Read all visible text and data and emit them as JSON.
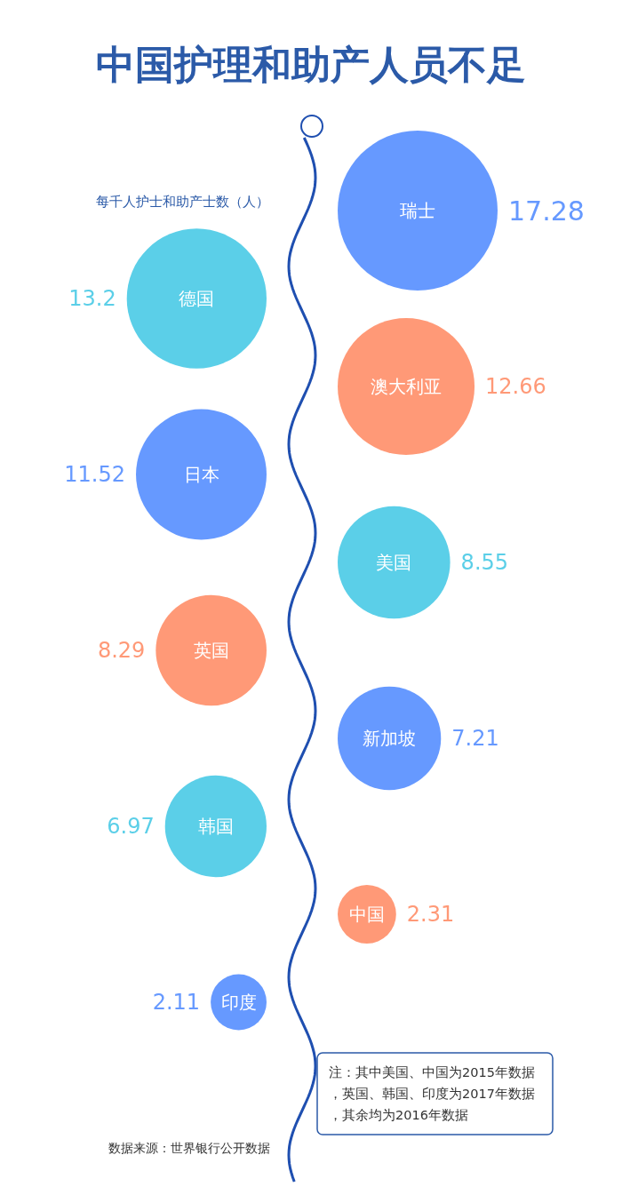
{
  "chart_data": {
    "type": "other",
    "title": "中国护理和助产人员不足",
    "subtitle": "每千人护士和助产士数（人）",
    "categories": [
      "瑞士",
      "德国",
      "澳大利亚",
      "日本",
      "美国",
      "英国",
      "新加坡",
      "韩国",
      "中国",
      "印度"
    ],
    "values": [
      17.28,
      13.2,
      12.66,
      11.52,
      8.55,
      8.29,
      7.21,
      6.97,
      2.31,
      2.11
    ],
    "colors": [
      "#6699ff",
      "#5bcfe8",
      "#ff9977",
      "#6699ff",
      "#5bcfe8",
      "#ff9977",
      "#6699ff",
      "#5bcfe8",
      "#ff9977",
      "#6699ff"
    ],
    "data_labels": true,
    "annotations": [
      "注：其中美国、中国为2015年数据，英国、韩国、印度为2017年数据，其余均为2016年数据",
      "数据来源：世界银行公开数据"
    ]
  }
}
